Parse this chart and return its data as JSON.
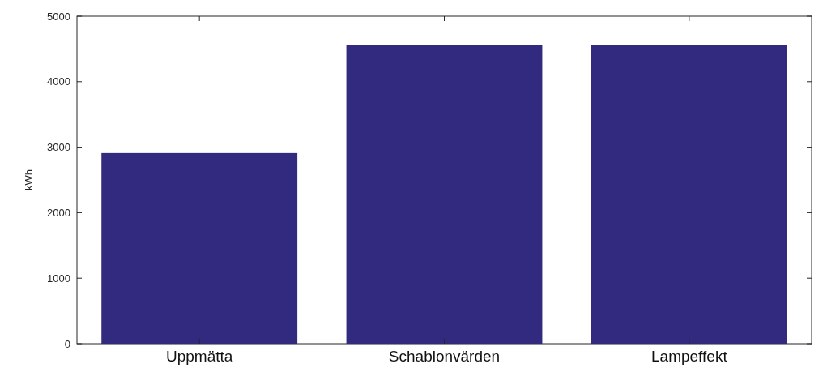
{
  "chart_data": {
    "type": "bar",
    "ylabel": "kWh",
    "categories": [
      "Uppmätta",
      "Schablonvärden",
      "Lampeffekt"
    ],
    "values": [
      2910,
      4560,
      4560
    ],
    "color": "#312a7f",
    "ylim": [
      0,
      5000
    ],
    "yticks": [
      0,
      1000,
      2000,
      3000,
      4000,
      5000
    ]
  }
}
